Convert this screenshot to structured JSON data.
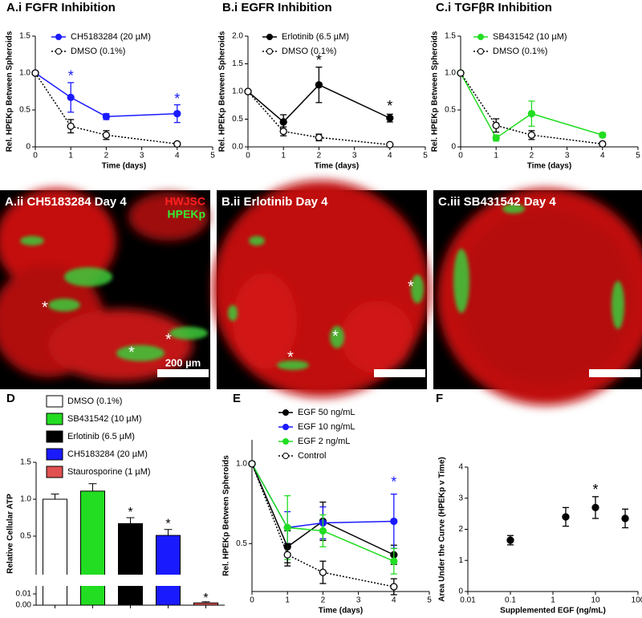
{
  "chart_data": [
    {
      "type": "line",
      "title": "A.i  FGFR Inhibition",
      "xlabel": "Time (days)",
      "ylabel": "Rel. HPEKp Between Spheroids",
      "x": [
        0,
        1,
        2,
        4
      ],
      "xlim": [
        0,
        5
      ],
      "xticks": [
        0,
        1,
        2,
        3,
        4,
        5
      ],
      "ylim": [
        0,
        1.5
      ],
      "yticks": [
        0,
        0.5,
        {
          "value": 1,
          "label": "1.0"
        },
        1.5
      ],
      "series": [
        {
          "name": "CH5183284 (20 µM)",
          "color": "#1a1aff",
          "marker": "filled",
          "style": "solid",
          "values": [
            1.0,
            0.67,
            0.41,
            0.45
          ],
          "errors": [
            0,
            0.2,
            0.04,
            0.12
          ]
        },
        {
          "name": "DMSO (0.1%)",
          "color": "#000000",
          "marker": "open",
          "style": "dotted",
          "values": [
            1.0,
            0.28,
            0.16,
            0.04
          ],
          "errors": [
            0,
            0.09,
            0.06,
            0.02
          ]
        }
      ],
      "annotations": [
        {
          "text": "*",
          "x": 1,
          "y": 0.95,
          "color": "#1a1aff"
        },
        {
          "text": "*",
          "x": 4,
          "y": 0.64,
          "color": "#1a1aff"
        }
      ]
    },
    {
      "type": "line",
      "title": "B.i  EGFR Inhibition",
      "xlabel": "Time (days)",
      "ylabel": "Rel. HPEKp Between Spheroids",
      "x": [
        0,
        1,
        2,
        4
      ],
      "xlim": [
        0,
        5
      ],
      "xticks": [
        0,
        1,
        2,
        3,
        4,
        5
      ],
      "ylim": [
        0,
        2
      ],
      "yticks": [
        {
          "value": 0,
          "label": "0.0"
        },
        0.5,
        {
          "value": 1,
          "label": "1.0"
        },
        1.5,
        {
          "value": 2,
          "label": "2.0"
        }
      ],
      "series": [
        {
          "name": "Erlotinib (6.5 µM)",
          "color": "#000000",
          "marker": "filled",
          "style": "solid",
          "values": [
            1.0,
            0.45,
            1.12,
            0.52
          ],
          "errors": [
            0,
            0.13,
            0.32,
            0.07
          ]
        },
        {
          "name": "DMSO (0.1%)",
          "color": "#000000",
          "marker": "open",
          "style": "dotted",
          "values": [
            1.0,
            0.28,
            0.17,
            0.04
          ],
          "errors": [
            0,
            0.08,
            0.06,
            0.02
          ]
        }
      ],
      "annotations": [
        {
          "text": "*",
          "x": 2,
          "y": 1.55,
          "color": "#000000"
        },
        {
          "text": "*",
          "x": 4,
          "y": 0.72,
          "color": "#000000"
        }
      ]
    },
    {
      "type": "line",
      "title": "C.i  TGFβR Inhibition",
      "xlabel": "Time (days)",
      "ylabel": "Rel. HPEKp Between Spheroids",
      "x": [
        0,
        1,
        2,
        4
      ],
      "xlim": [
        0,
        5
      ],
      "xticks": [
        0,
        1,
        2,
        3,
        4,
        5
      ],
      "ylim": [
        0,
        1.5
      ],
      "yticks": [
        0,
        0.5,
        {
          "value": 1,
          "label": "1.0"
        },
        1.5
      ],
      "series": [
        {
          "name": "SB431542 (10 µM)",
          "color": "#22dd22",
          "marker": "filled",
          "style": "solid",
          "values": [
            1.0,
            0.12,
            0.45,
            0.16
          ],
          "errors": [
            0,
            0.04,
            0.17,
            0.03
          ]
        },
        {
          "name": "DMSO (0.1%)",
          "color": "#000000",
          "marker": "open",
          "style": "dotted",
          "values": [
            1.0,
            0.29,
            0.16,
            0.04
          ],
          "errors": [
            0,
            0.09,
            0.06,
            0.02
          ]
        }
      ],
      "annotations": []
    },
    {
      "type": "bar",
      "title": "D",
      "ylabel": "Relative Cellular ATP",
      "categories": [
        null,
        null,
        null,
        null,
        null
      ],
      "ylim": [
        0,
        1.5
      ],
      "ylim_lower": [
        0,
        0.01
      ],
      "yticks": [
        {
          "value": 0,
          "label": "0.00"
        },
        0.01,
        0.5,
        {
          "value": 1,
          "label": "1.0"
        },
        1.5
      ],
      "series": [
        {
          "name": "DMSO (0.1%)",
          "color": "#ffffff"
        },
        {
          "name": "SB431542 (10 µM)",
          "color": "#22dd22"
        },
        {
          "name": "Erlotinib (6.5 µM)",
          "color": "#000000"
        },
        {
          "name": "CH5183284 (20 µM)",
          "color": "#1a1aff"
        },
        {
          "name": "Staurosporine (1 µM)",
          "color": "#e05050"
        }
      ],
      "values": [
        1.0,
        1.11,
        0.67,
        0.51,
        0.002
      ],
      "errors": [
        0.07,
        0.1,
        0.08,
        0.08,
        0.001
      ],
      "annotations": [
        {
          "text": "*",
          "x": 2,
          "y": 0.82,
          "color": "#000000"
        },
        {
          "text": "*",
          "x": 3,
          "y": 0.66,
          "color": "#000000"
        },
        {
          "text": "*",
          "x": 4,
          "y": 0.006,
          "color": "#000000"
        }
      ]
    },
    {
      "type": "line",
      "title": "E",
      "xlabel": "Time (days)",
      "ylabel": "Rel. HPEKp Between Spheroids",
      "x": [
        0,
        1,
        2,
        4
      ],
      "xlim": [
        0,
        5
      ],
      "xticks": [
        0,
        1,
        2,
        3,
        4,
        5
      ],
      "ylim": [
        0.2,
        1.15
      ],
      "yticks": [
        0.5,
        {
          "value": 1,
          "label": "1.0"
        }
      ],
      "series": [
        {
          "name": "EGF 50 ng/mL",
          "color": "#000000",
          "marker": "filled",
          "style": "solid",
          "values": [
            1.0,
            0.48,
            0.64,
            0.43
          ],
          "errors": [
            0,
            0.1,
            0.12,
            0.06
          ]
        },
        {
          "name": "EGF 10 ng/mL",
          "color": "#1a1aff",
          "marker": "filled",
          "style": "solid",
          "values": [
            1.0,
            0.6,
            0.63,
            0.64
          ],
          "errors": [
            0,
            0.1,
            0.1,
            0.17
          ]
        },
        {
          "name": "EGF 2 ng/mL",
          "color": "#22dd22",
          "marker": "filled",
          "style": "solid",
          "values": [
            1.0,
            0.6,
            0.58,
            0.39
          ],
          "errors": [
            0,
            0.2,
            0.1,
            0.08
          ]
        },
        {
          "name": "Control",
          "color": "#000000",
          "marker": "open",
          "style": "dotted",
          "values": [
            1.0,
            0.43,
            0.32,
            0.23
          ],
          "errors": [
            0,
            0.07,
            0.07,
            0.05
          ]
        }
      ],
      "annotations": [
        {
          "text": "*",
          "x": 4,
          "y": 0.88,
          "color": "#1a1aff"
        }
      ]
    },
    {
      "type": "scatter",
      "title": "F",
      "xlabel": "Supplemented  EGF (ng/mL)",
      "ylabel": "Area Under the Curve  (HPEKp v Time)",
      "xlog": true,
      "x": [
        0.1,
        2,
        10,
        50
      ],
      "xlim": [
        0.01,
        100
      ],
      "xticks": [
        0.01,
        0.1,
        1,
        10,
        100
      ],
      "ylim": [
        0,
        4
      ],
      "yticks": [
        0,
        1,
        2,
        3,
        4
      ],
      "color": "#000000",
      "values": [
        1.65,
        2.4,
        2.7,
        2.35
      ],
      "errors": [
        0.15,
        0.3,
        0.35,
        0.3
      ],
      "annotations": [
        {
          "text": "*",
          "x": 10,
          "y": 3.25,
          "color": "#000000"
        }
      ]
    }
  ],
  "images": [
    {
      "label": "A.ii CH5183284 Day 4",
      "channels": [
        "HWJSC",
        "HPEKp"
      ],
      "scale_bar": "200 µm",
      "markers": [
        "*",
        "*",
        "*"
      ]
    },
    {
      "label": "B.ii Erlotinib Day 4",
      "markers": [
        "*",
        "*",
        "*"
      ]
    },
    {
      "label": "C.iii SB431542 Day 4"
    }
  ]
}
